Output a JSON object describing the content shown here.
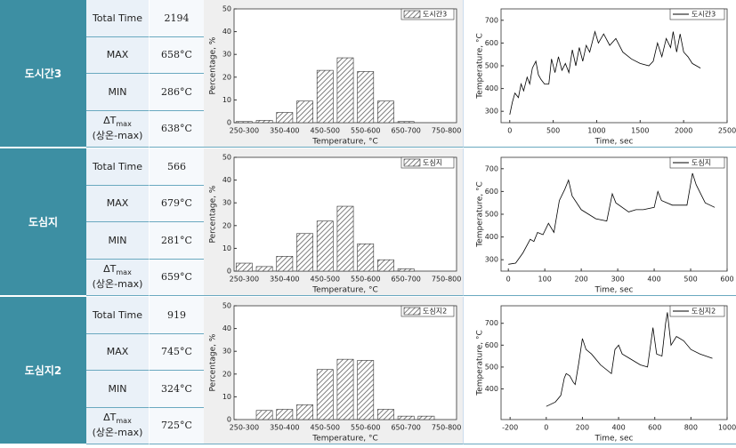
{
  "rows": [
    {
      "label": "도시간3",
      "stats": [
        {
          "label": "Total Time",
          "value": "2194"
        },
        {
          "label": "MAX",
          "value": "658°C"
        },
        {
          "label": "MIN",
          "value": "286°C"
        },
        {
          "label": "ΔT",
          "sub": "max",
          "note": "(상온-max)",
          "value": "638°C"
        }
      ]
    },
    {
      "label": "도심지",
      "stats": [
        {
          "label": "Total Time",
          "value": "566"
        },
        {
          "label": "MAX",
          "value": "679°C"
        },
        {
          "label": "MIN",
          "value": "281°C"
        },
        {
          "label": "ΔT",
          "sub": "max",
          "note": "(상온-max)",
          "value": "659°C"
        }
      ]
    },
    {
      "label": "도심지2",
      "stats": [
        {
          "label": "Total Time",
          "value": "919"
        },
        {
          "label": "MAX",
          "value": "745°C"
        },
        {
          "label": "MIN",
          "value": "324°C"
        },
        {
          "label": "ΔT",
          "sub": "max",
          "note": "(상온-max)",
          "value": "725°C"
        }
      ]
    }
  ],
  "chart_data": [
    {
      "type": "bar",
      "x_label": "Temperature, °C",
      "y_label": "Percentage, %",
      "legend": "도시간3",
      "color": "#555555",
      "categories": [
        "250-300",
        null,
        "350-400",
        null,
        "450-500",
        null,
        "550-600",
        null,
        "650-700",
        null,
        "750-800"
      ],
      "values": [
        0.5,
        1,
        4.5,
        9.5,
        23,
        28.5,
        22.5,
        9.5,
        0.5,
        0,
        0
      ],
      "ylim": [
        0,
        50
      ],
      "yticks": [
        0,
        10,
        20,
        30,
        40,
        50
      ]
    },
    {
      "type": "line",
      "x_label": "Time, sec",
      "y_label": "Temperature, °C",
      "legend": "도시간3",
      "color": "#000000",
      "x": [
        0,
        30,
        60,
        100,
        130,
        160,
        200,
        230,
        260,
        300,
        330,
        360,
        400,
        450,
        480,
        520,
        560,
        600,
        640,
        680,
        720,
        760,
        800,
        840,
        880,
        920,
        980,
        1020,
        1080,
        1150,
        1220,
        1300,
        1400,
        1500,
        1600,
        1650,
        1700,
        1750,
        1800,
        1850,
        1880,
        1920,
        1960,
        2000,
        2050,
        2100,
        2194
      ],
      "values": [
        285,
        340,
        380,
        360,
        420,
        390,
        450,
        420,
        490,
        520,
        460,
        440,
        420,
        420,
        530,
        470,
        540,
        480,
        510,
        470,
        570,
        500,
        580,
        520,
        590,
        560,
        650,
        600,
        640,
        590,
        620,
        560,
        530,
        510,
        500,
        520,
        600,
        540,
        620,
        580,
        650,
        560,
        640,
        560,
        540,
        510,
        490
      ],
      "xlim": [
        -100,
        2500
      ],
      "xticks": [
        0,
        500,
        1000,
        1500,
        2000,
        2500
      ],
      "ylim": [
        250,
        750
      ],
      "yticks": [
        300,
        400,
        500,
        600,
        700
      ]
    },
    {
      "type": "bar",
      "x_label": "Temperature, °C",
      "y_label": "Percentage, %",
      "legend": "도심지",
      "color": "#555555",
      "categories": [
        "250-300",
        null,
        "350-400",
        null,
        "450-500",
        null,
        "550-600",
        null,
        "650-700",
        null,
        "750-800"
      ],
      "values": [
        3.5,
        2,
        6.5,
        16.5,
        22,
        28.5,
        12,
        5,
        1,
        0,
        0
      ],
      "ylim": [
        0,
        50
      ],
      "yticks": [
        0,
        10,
        20,
        30,
        40,
        50
      ]
    },
    {
      "type": "line",
      "x_label": "Time, sec",
      "y_label": "Temperature, °C",
      "legend": "도심지",
      "color": "#000000",
      "x": [
        0,
        20,
        40,
        60,
        70,
        80,
        95,
        110,
        125,
        140,
        155,
        165,
        175,
        200,
        240,
        270,
        285,
        295,
        330,
        350,
        370,
        400,
        410,
        420,
        450,
        490,
        505,
        515,
        540,
        566
      ],
      "values": [
        280,
        285,
        330,
        390,
        380,
        420,
        410,
        460,
        420,
        560,
        610,
        650,
        580,
        520,
        480,
        470,
        590,
        550,
        510,
        520,
        520,
        530,
        600,
        560,
        540,
        540,
        680,
        630,
        550,
        530
      ],
      "xlim": [
        -20,
        600
      ],
      "xticks": [
        0,
        100,
        200,
        300,
        400,
        500,
        600
      ],
      "ylim": [
        250,
        750
      ],
      "yticks": [
        300,
        400,
        500,
        600,
        700
      ]
    },
    {
      "type": "bar",
      "x_label": "Temperature, °C",
      "y_label": "Percentage, %",
      "legend": "도심지2",
      "color": "#555555",
      "categories": [
        "250-300",
        null,
        "350-400",
        null,
        "450-500",
        null,
        "550-600",
        null,
        "650-700",
        null,
        "750-800"
      ],
      "values": [
        0,
        4,
        4.5,
        6.5,
        22,
        26.5,
        26,
        4.5,
        1.5,
        1.5,
        0
      ],
      "ylim": [
        0,
        50
      ],
      "yticks": [
        0,
        10,
        20,
        30,
        40,
        50
      ]
    },
    {
      "type": "line",
      "x_label": "Time, sec",
      "y_label": "Temperature, °C",
      "legend": "도심지2",
      "color": "#000000",
      "x": [
        0,
        50,
        80,
        100,
        110,
        130,
        150,
        160,
        180,
        200,
        220,
        250,
        300,
        360,
        380,
        400,
        420,
        460,
        520,
        560,
        590,
        610,
        640,
        660,
        670,
        690,
        720,
        760,
        800,
        850,
        919
      ],
      "values": [
        320,
        340,
        370,
        450,
        470,
        460,
        430,
        420,
        520,
        630,
        580,
        560,
        510,
        470,
        580,
        600,
        560,
        540,
        510,
        500,
        680,
        560,
        550,
        700,
        750,
        600,
        640,
        620,
        580,
        560,
        540
      ],
      "xlim": [
        -250,
        1000
      ],
      "xticks": [
        -200,
        0,
        200,
        400,
        600,
        800,
        1000
      ],
      "ylim": [
        260,
        780
      ],
      "yticks": [
        400,
        500,
        600,
        700
      ]
    }
  ]
}
